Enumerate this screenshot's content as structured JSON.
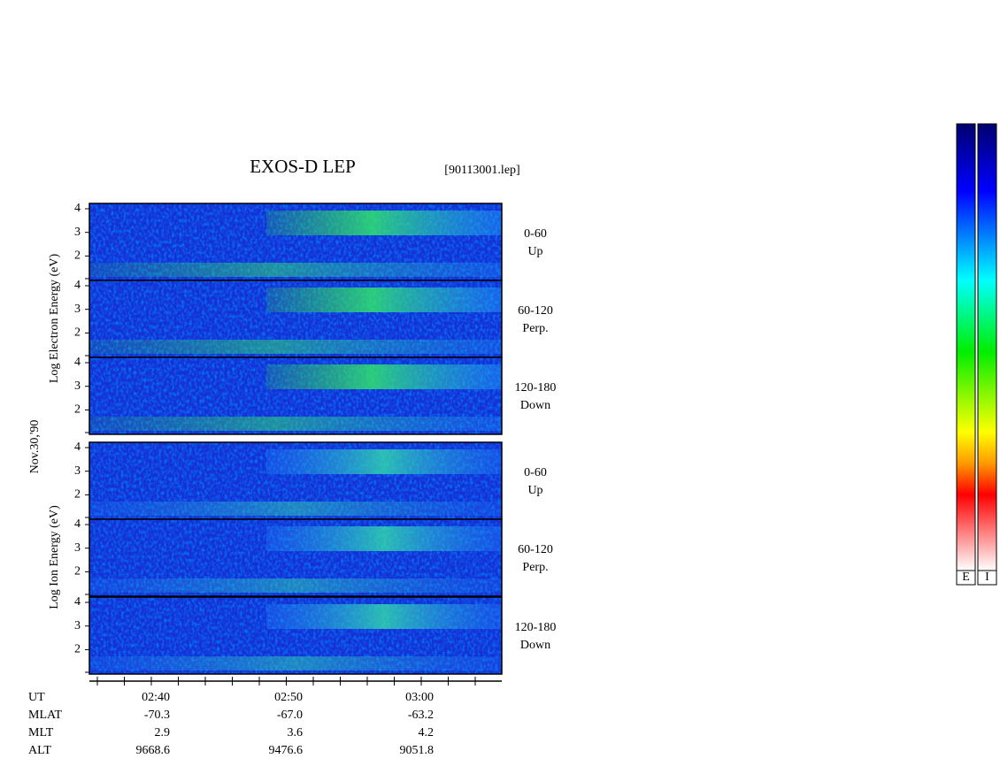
{
  "header": {
    "title": "EXOS-D LEP",
    "file": "[90113001.lep]"
  },
  "labels": {
    "electron": "Log  Electron  Energy (eV)",
    "ion": "Log  Ion  Energy (eV)",
    "date": "Nov.30,'90"
  },
  "energy_ticks": [
    "4",
    "3",
    "2"
  ],
  "electron_panels": [
    {
      "range": "0-60",
      "direction": "Up"
    },
    {
      "range": "60-120",
      "direction": "Perp."
    },
    {
      "range": "120-180",
      "direction": "Down"
    }
  ],
  "ion_panels": [
    {
      "range": "0-60",
      "direction": "Up"
    },
    {
      "range": "60-120",
      "direction": "Perp."
    },
    {
      "range": "120-180",
      "direction": "Down"
    }
  ],
  "time_axis": {
    "rows": [
      {
        "name": "UT",
        "values": [
          "02:40",
          "02:50",
          "03:00"
        ]
      },
      {
        "name": "MLAT",
        "values": [
          "-70.3",
          "-67.0",
          "-63.2"
        ]
      },
      {
        "name": "MLT",
        "values": [
          "2.9",
          "3.6",
          "4.2"
        ]
      },
      {
        "name": "ALT",
        "values": [
          "9668.6",
          "9476.6",
          "9051.8"
        ]
      }
    ]
  },
  "colorbars": [
    "E",
    "I"
  ]
}
